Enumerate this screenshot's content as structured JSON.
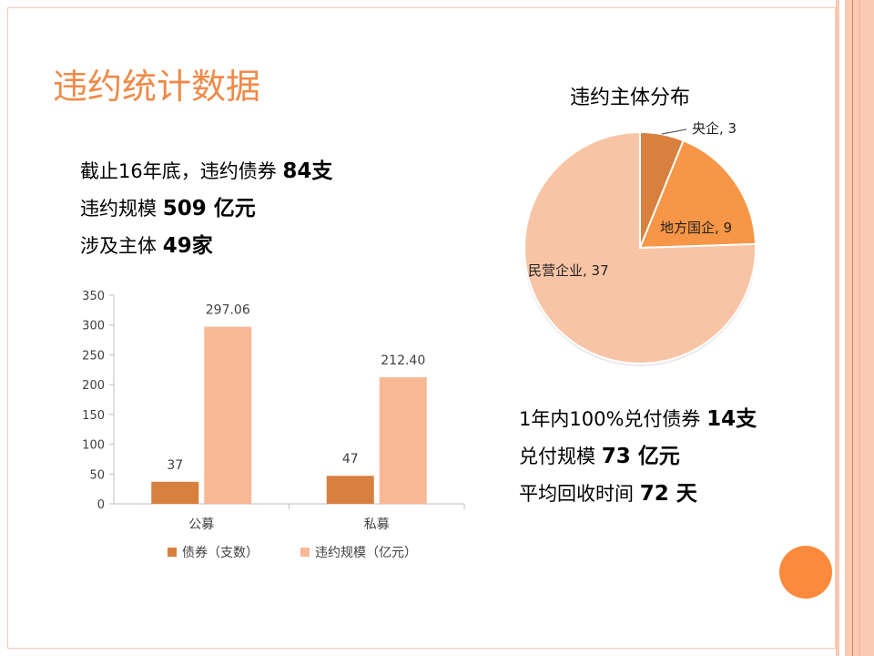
{
  "slide": {
    "title": "违约统计数据",
    "stats_left": [
      {
        "text": "截止16年底，违约债券 ",
        "bold": "84支"
      },
      {
        "text": "违约规模 ",
        "bold": "509 亿元"
      },
      {
        "text": "涉及主体 ",
        "bold": "49家"
      }
    ],
    "stats_right": [
      {
        "text": "1年内100%兑付债券 ",
        "bold": "14支"
      },
      {
        "text": "兑付规模 ",
        "bold": "73 亿元"
      },
      {
        "text": "平均回收时间 ",
        "bold": "72 天"
      }
    ]
  },
  "colors": {
    "accent": "#f08a48",
    "dark": "#d8803e",
    "light": "#f9b895",
    "pie_mid": "#f79646",
    "pie_light": "#f8c4a6"
  },
  "chart_data": [
    {
      "type": "bar",
      "title": "",
      "categories": [
        "公募",
        "私募"
      ],
      "series": [
        {
          "name": "债券（支数）",
          "values": [
            37,
            47
          ],
          "labels": [
            "37",
            "47"
          ]
        },
        {
          "name": "违约规模（亿元）",
          "values": [
            297.06,
            212.4
          ],
          "labels": [
            "297.06",
            "212.40"
          ]
        }
      ],
      "ylim": [
        0,
        350
      ],
      "yticks": [
        "0",
        "50",
        "100",
        "150",
        "200",
        "250",
        "300",
        "350"
      ],
      "legend": "bottom"
    },
    {
      "type": "pie",
      "title": "违约主体分布",
      "slices": [
        {
          "label": "央企, 3",
          "value": 3
        },
        {
          "label": "地方国企, 9",
          "value": 9
        },
        {
          "label": "民营企业, 37",
          "value": 37
        }
      ]
    }
  ]
}
